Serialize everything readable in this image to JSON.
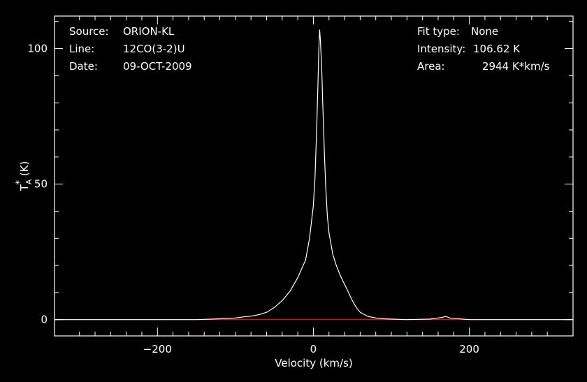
{
  "info": {
    "source_label": "Source:",
    "source_value": "ORION-KL",
    "line_label": "Line:",
    "line_value": "12CO(3-2)U",
    "date_label": "Date:",
    "date_value": "09-OCT-2009",
    "fit_label": "Fit type:",
    "fit_value": "None",
    "intensity_label": "Intensity:",
    "intensity_value": "106.62 K",
    "area_label": "Area:",
    "area_value": "2944 K*km/s"
  },
  "chart_data": {
    "type": "line",
    "xlabel": "Velocity (km/s)",
    "ylabel_main": "T",
    "ylabel_sub": "A",
    "ylabel_sup": "*",
    "ylabel_unit": "(K)",
    "xlim": [
      -332,
      333
    ],
    "ylim": [
      -6,
      112
    ],
    "xticks": [
      -200,
      0,
      200
    ],
    "yticks": [
      0,
      50,
      100
    ],
    "xtick_labels": [
      "−200",
      "0",
      "200"
    ],
    "ytick_labels": [
      "0",
      "50",
      "100"
    ],
    "baseline": 0,
    "colors": {
      "series": "#ffffff",
      "baseline": "#ff2020",
      "frame": "#ffffff"
    },
    "series": [
      {
        "x": [
          -332,
          -300,
          -250,
          -200,
          -150,
          -120,
          -100,
          -90,
          -80,
          -70,
          -60,
          -50,
          -40,
          -30,
          -20,
          -10,
          -5,
          0,
          2,
          4,
          6,
          7,
          8,
          9,
          10,
          11,
          12,
          13,
          14,
          16,
          18,
          20,
          25,
          30,
          35,
          40,
          45,
          50,
          55,
          60,
          70,
          80,
          90,
          100,
          120,
          150,
          165,
          170,
          175,
          200,
          250,
          300,
          333
        ],
        "y": [
          0,
          0,
          0,
          0,
          0,
          0.3,
          0.6,
          1,
          1.3,
          1.8,
          2.7,
          4.5,
          7,
          10.5,
          15.5,
          22,
          30,
          42,
          52,
          68,
          88,
          100,
          107,
          103,
          97,
          90,
          80,
          72,
          62,
          48,
          38,
          32,
          24,
          19.5,
          16,
          13,
          10,
          7,
          4.5,
          2.7,
          1.2,
          0.6,
          0.3,
          0.2,
          0,
          0.2,
          0.8,
          1.2,
          0.6,
          0,
          0,
          0,
          0
        ]
      }
    ]
  }
}
